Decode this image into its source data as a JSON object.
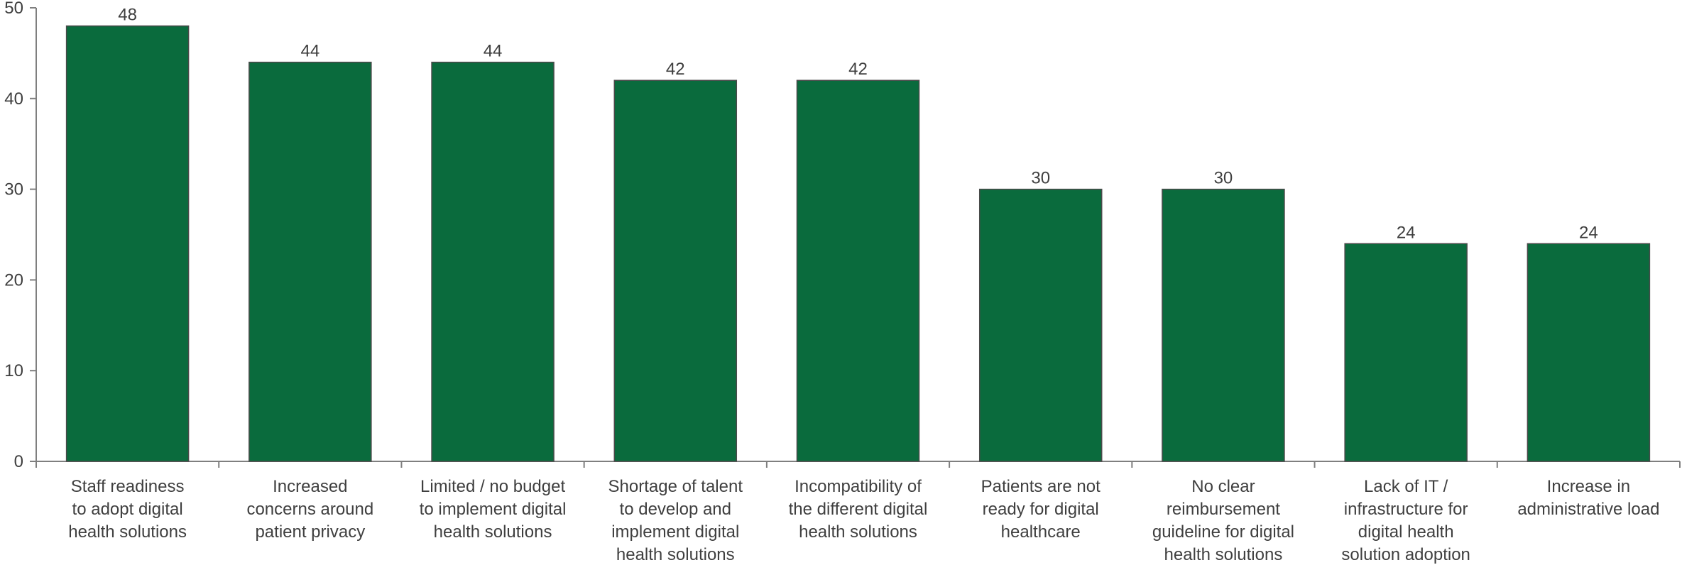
{
  "chart_data": {
    "type": "bar",
    "title": "",
    "xlabel": "",
    "ylabel": "",
    "ylim": [
      0,
      50
    ],
    "yticks": [
      0,
      10,
      20,
      30,
      40,
      50
    ],
    "grid": false,
    "bar_color": "#0a6b3d",
    "categories": [
      "Staff readiness to adopt digital health solutions",
      "Increased concerns around patient privacy",
      "Limited / no budget to implement digital health solutions",
      "Shortage of talent to develop and implement digital health solutions",
      "Incompatibility of the different digital health solutions",
      "Patients are not ready for digital healthcare",
      "No clear reimbursement guideline for digital health solutions",
      "Lack of IT / infrastructure for digital health solution adoption",
      "Increase in administrative load"
    ],
    "category_lines": [
      [
        "Staff readiness",
        "to adopt digital",
        "health solutions"
      ],
      [
        "Increased",
        "concerns around",
        "patient privacy"
      ],
      [
        "Limited / no budget",
        "to implement digital",
        "health solutions"
      ],
      [
        "Shortage of talent",
        "to develop and",
        "implement digital",
        "health solutions"
      ],
      [
        "Incompatibility of",
        "the different digital",
        "health solutions"
      ],
      [
        "Patients are not",
        "ready for digital",
        "healthcare"
      ],
      [
        "No clear",
        "reimbursement",
        "guideline for digital",
        "health solutions"
      ],
      [
        "Lack of IT /",
        "infrastructure for",
        "digital health",
        "solution adoption"
      ],
      [
        "Increase in",
        "administrative load"
      ]
    ],
    "values": [
      48,
      44,
      44,
      42,
      42,
      30,
      30,
      24,
      24
    ],
    "data_labels": [
      "48",
      "44",
      "44",
      "42",
      "42",
      "30",
      "30",
      "24",
      "24"
    ]
  }
}
